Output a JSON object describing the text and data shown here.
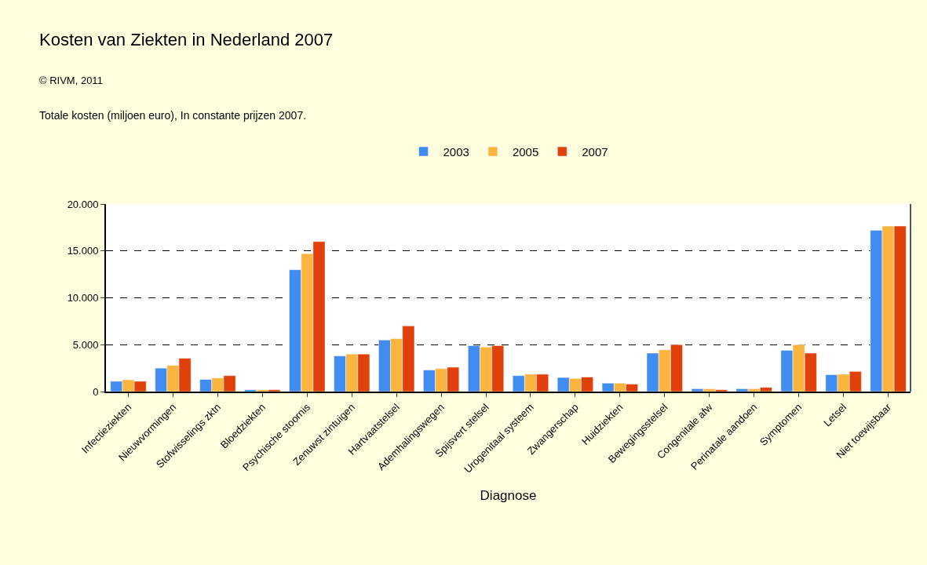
{
  "chart_data": {
    "type": "bar",
    "title": "Kosten van Ziekten in Nederland 2007",
    "subtitle": "© RIVM, 2011",
    "annotations": [
      "Totale kosten (miljoen euro), In constante prijzen 2007."
    ],
    "xlabel": "Diagnose",
    "categories": [
      "Infectieziekten",
      "Nieuwvormingen",
      "Stofwisselings zktn",
      "Bloedziekten",
      "Psychische stoornis",
      "Zenuwst zintuigen",
      "Hartvaatstelsel",
      "Ademhalingswegen",
      "Spijsvert stelsel",
      "Urogenitaal systeem",
      "Zwangerschap",
      "Huidziekten",
      "Bewegingsstelsel",
      "Congenitale afw",
      "Perinatale aandoen",
      "Symptomen",
      "Letsel",
      "Niet toewijsbaar"
    ],
    "series": [
      {
        "name": "2003",
        "color": "#418cf0",
        "values": [
          1100,
          2500,
          1300,
          200,
          13000,
          3800,
          5500,
          2300,
          4900,
          1700,
          1500,
          900,
          4100,
          300,
          300,
          4400,
          1800,
          17200
        ]
      },
      {
        "name": "2005",
        "color": "#fcb441",
        "values": [
          1250,
          2800,
          1450,
          200,
          14700,
          4000,
          5650,
          2450,
          4750,
          1850,
          1400,
          900,
          4450,
          300,
          300,
          5000,
          1850,
          17650
        ]
      },
      {
        "name": "2007",
        "color": "#e0400a",
        "values": [
          1100,
          3550,
          1700,
          200,
          16000,
          4000,
          7000,
          2600,
          4900,
          1850,
          1550,
          800,
          5000,
          200,
          450,
          4100,
          2150,
          17650
        ]
      }
    ],
    "ylim": [
      0,
      20000
    ],
    "yticks": [
      {
        "value": 0,
        "label": "0"
      },
      {
        "value": 5000,
        "label": "5.000"
      },
      {
        "value": 10000,
        "label": "10.000"
      },
      {
        "value": 15000,
        "label": "15.000"
      },
      {
        "value": 20000,
        "label": "20.000"
      }
    ],
    "grid": "y",
    "line_style": "dashed",
    "legend": "top"
  }
}
